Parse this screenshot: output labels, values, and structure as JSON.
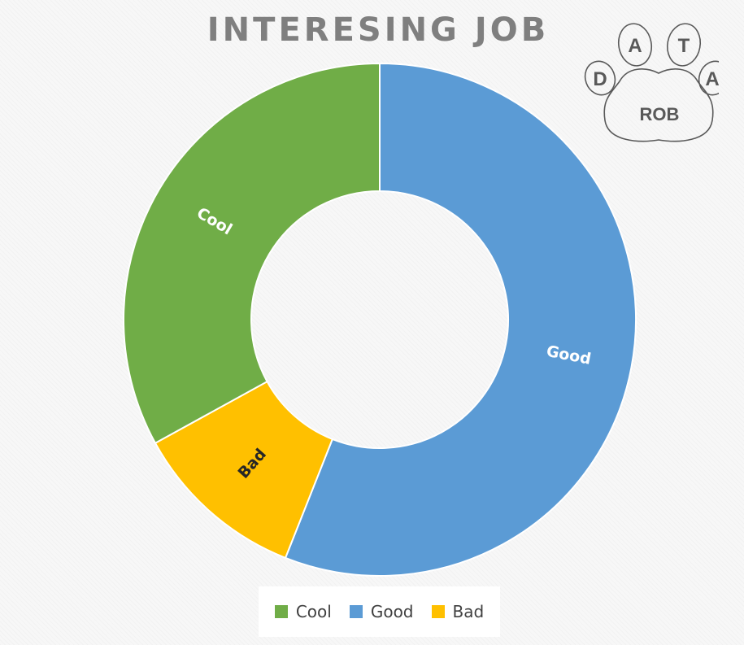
{
  "chart_data": {
    "type": "donut",
    "title": "INTERESING JOB",
    "categories": [
      "Cool",
      "Good",
      "Bad"
    ],
    "values": [
      33,
      56,
      11
    ],
    "colors": [
      "#70ad47",
      "#5b9bd5",
      "#ffc000"
    ],
    "label_colors": [
      "#ffffff",
      "#ffffff",
      "#262626"
    ],
    "start_category": "Good",
    "legend_position": "bottom"
  },
  "logo": {
    "letters": [
      "D",
      "A",
      "T",
      "A"
    ],
    "name": "ROB"
  }
}
